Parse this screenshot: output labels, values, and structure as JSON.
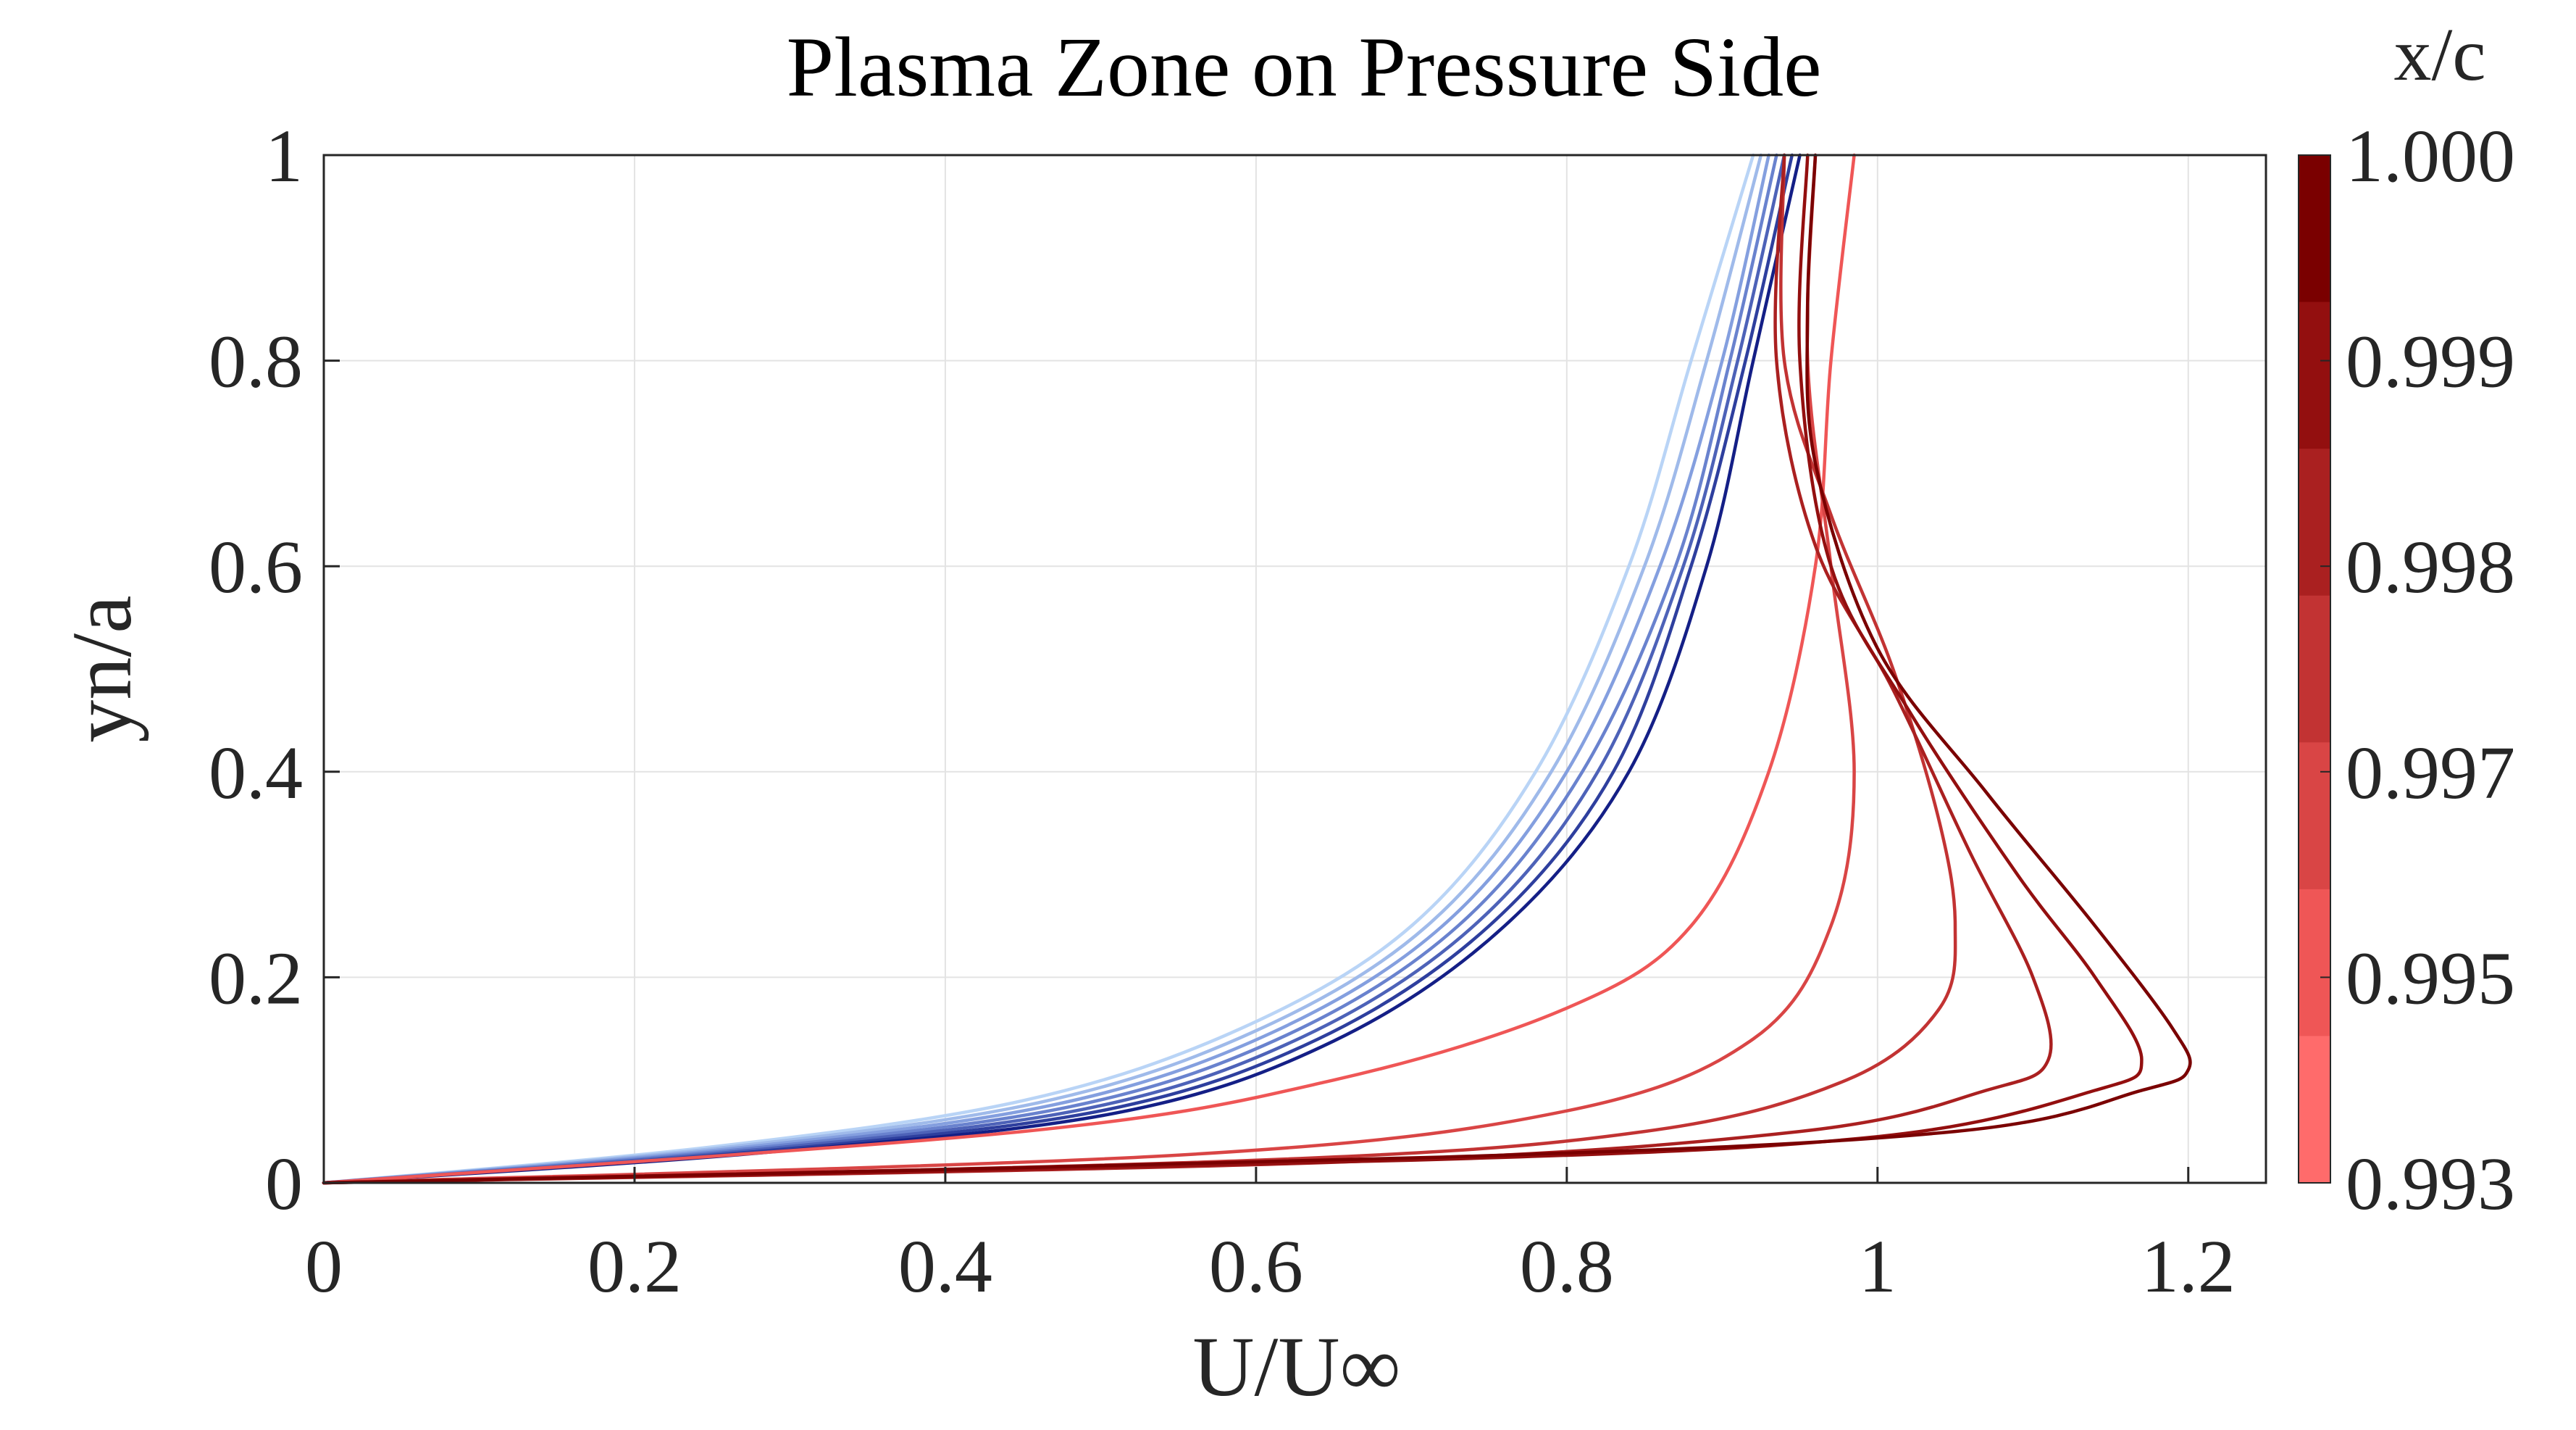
{
  "chart_data": {
    "type": "line",
    "title": "Plasma Zone on Pressure Side",
    "xlabel": "U/U∞",
    "ylabel": "yn/a",
    "xlim": [
      0,
      1.25
    ],
    "ylim": [
      0,
      1
    ],
    "grid": true,
    "x_ticks": [
      "0",
      "0.2",
      "0.4",
      "0.6",
      "0.8",
      "1",
      "1.2"
    ],
    "x_tick_values": [
      0,
      0.2,
      0.4,
      0.6,
      0.8,
      1.0,
      1.2
    ],
    "y_ticks": [
      "0",
      "0.2",
      "0.4",
      "0.6",
      "0.8",
      "1"
    ],
    "y_tick_values": [
      0,
      0.2,
      0.4,
      0.6,
      0.8,
      1.0
    ],
    "colorbar": {
      "title": "x/c",
      "tick_labels": [
        "1.000",
        "0.999",
        "0.998",
        "0.997",
        "0.995",
        "0.993"
      ],
      "colors": [
        "#7a0000",
        "#930f0f",
        "#aa2020",
        "#c23333",
        "#d94545",
        "#ef5656",
        "#ff6b6b"
      ]
    },
    "blue_series": [
      {
        "color": "#b9d4f6",
        "points": [
          [
            0,
            0
          ],
          [
            0.25,
            0.035
          ],
          [
            0.45,
            0.08
          ],
          [
            0.59,
            0.15
          ],
          [
            0.7,
            0.25
          ],
          [
            0.78,
            0.4
          ],
          [
            0.84,
            0.6
          ],
          [
            0.88,
            0.8
          ],
          [
            0.92,
            1.0
          ]
        ]
      },
      {
        "color": "#9fbaea",
        "points": [
          [
            0,
            0
          ],
          [
            0.255,
            0.034
          ],
          [
            0.46,
            0.078
          ],
          [
            0.6,
            0.148
          ],
          [
            0.71,
            0.25
          ],
          [
            0.79,
            0.4
          ],
          [
            0.85,
            0.6
          ],
          [
            0.89,
            0.8
          ],
          [
            0.925,
            1.0
          ]
        ]
      },
      {
        "color": "#849fdf",
        "points": [
          [
            0,
            0
          ],
          [
            0.26,
            0.033
          ],
          [
            0.47,
            0.076
          ],
          [
            0.61,
            0.146
          ],
          [
            0.72,
            0.25
          ],
          [
            0.8,
            0.4
          ],
          [
            0.86,
            0.6
          ],
          [
            0.9,
            0.8
          ],
          [
            0.93,
            1.0
          ]
        ]
      },
      {
        "color": "#6982ce",
        "points": [
          [
            0,
            0
          ],
          [
            0.265,
            0.032
          ],
          [
            0.48,
            0.074
          ],
          [
            0.62,
            0.144
          ],
          [
            0.73,
            0.25
          ],
          [
            0.81,
            0.4
          ],
          [
            0.87,
            0.6
          ],
          [
            0.905,
            0.8
          ],
          [
            0.935,
            1.0
          ]
        ]
      },
      {
        "color": "#4d62b8",
        "points": [
          [
            0,
            0
          ],
          [
            0.27,
            0.031
          ],
          [
            0.49,
            0.072
          ],
          [
            0.63,
            0.142
          ],
          [
            0.74,
            0.25
          ],
          [
            0.82,
            0.4
          ],
          [
            0.875,
            0.6
          ],
          [
            0.91,
            0.8
          ],
          [
            0.94,
            1.0
          ]
        ]
      },
      {
        "color": "#2e3f9e",
        "points": [
          [
            0,
            0
          ],
          [
            0.275,
            0.03
          ],
          [
            0.5,
            0.07
          ],
          [
            0.64,
            0.14
          ],
          [
            0.75,
            0.25
          ],
          [
            0.83,
            0.4
          ],
          [
            0.88,
            0.6
          ],
          [
            0.915,
            0.8
          ],
          [
            0.945,
            1.0
          ]
        ]
      },
      {
        "color": "#141f86",
        "points": [
          [
            0,
            0
          ],
          [
            0.28,
            0.029
          ],
          [
            0.51,
            0.068
          ],
          [
            0.65,
            0.138
          ],
          [
            0.76,
            0.25
          ],
          [
            0.84,
            0.4
          ],
          [
            0.89,
            0.6
          ],
          [
            0.92,
            0.8
          ],
          [
            0.95,
            1.0
          ]
        ]
      }
    ],
    "red_series": [
      {
        "color": "#ef5656",
        "points": [
          [
            0,
            0
          ],
          [
            0.45,
            0.05
          ],
          [
            0.65,
            0.1
          ],
          [
            0.8,
            0.17
          ],
          [
            0.88,
            0.25
          ],
          [
            0.93,
            0.4
          ],
          [
            0.96,
            0.6
          ],
          [
            0.97,
            0.8
          ],
          [
            0.985,
            1.0
          ]
        ]
      },
      {
        "color": "#d94545",
        "points": [
          [
            0,
            0
          ],
          [
            0.55,
            0.027
          ],
          [
            0.8,
            0.07
          ],
          [
            0.92,
            0.14
          ],
          [
            0.97,
            0.25
          ],
          [
            0.985,
            0.4
          ],
          [
            0.97,
            0.6
          ],
          [
            0.955,
            0.8
          ],
          [
            0.96,
            1.0
          ]
        ]
      },
      {
        "color": "#c23333",
        "points": [
          [
            0,
            0
          ],
          [
            0.6,
            0.022
          ],
          [
            0.85,
            0.05
          ],
          [
            0.98,
            0.1
          ],
          [
            1.04,
            0.17
          ],
          [
            1.05,
            0.25
          ],
          [
            1.04,
            0.35
          ],
          [
            1.01,
            0.5
          ],
          [
            0.97,
            0.65
          ],
          [
            0.94,
            0.8
          ],
          [
            0.94,
            1.0
          ]
        ]
      },
      {
        "color": "#aa2020",
        "points": [
          [
            0,
            0
          ],
          [
            0.65,
            0.02
          ],
          [
            0.95,
            0.05
          ],
          [
            1.07,
            0.09
          ],
          [
            1.11,
            0.12
          ],
          [
            1.1,
            0.2
          ],
          [
            1.06,
            0.32
          ],
          [
            1.01,
            0.48
          ],
          [
            0.96,
            0.62
          ],
          [
            0.935,
            0.8
          ],
          [
            0.94,
            1.0
          ]
        ]
      },
      {
        "color": "#930f0f",
        "points": [
          [
            0,
            0
          ],
          [
            0.7,
            0.022
          ],
          [
            1.0,
            0.045
          ],
          [
            1.14,
            0.09
          ],
          [
            1.17,
            0.12
          ],
          [
            1.14,
            0.2
          ],
          [
            1.09,
            0.3
          ],
          [
            1.02,
            0.46
          ],
          [
            0.97,
            0.6
          ],
          [
            0.95,
            0.8
          ],
          [
            0.955,
            1.0
          ]
        ]
      },
      {
        "color": "#7a0000",
        "points": [
          [
            0,
            0
          ],
          [
            0.72,
            0.025
          ],
          [
            1.05,
            0.05
          ],
          [
            1.17,
            0.09
          ],
          [
            1.2,
            0.11
          ],
          [
            1.19,
            0.15
          ],
          [
            1.14,
            0.25
          ],
          [
            1.07,
            0.38
          ],
          [
            1.0,
            0.52
          ],
          [
            0.96,
            0.7
          ],
          [
            0.955,
            0.85
          ],
          [
            0.96,
            1.0
          ]
        ]
      }
    ]
  }
}
